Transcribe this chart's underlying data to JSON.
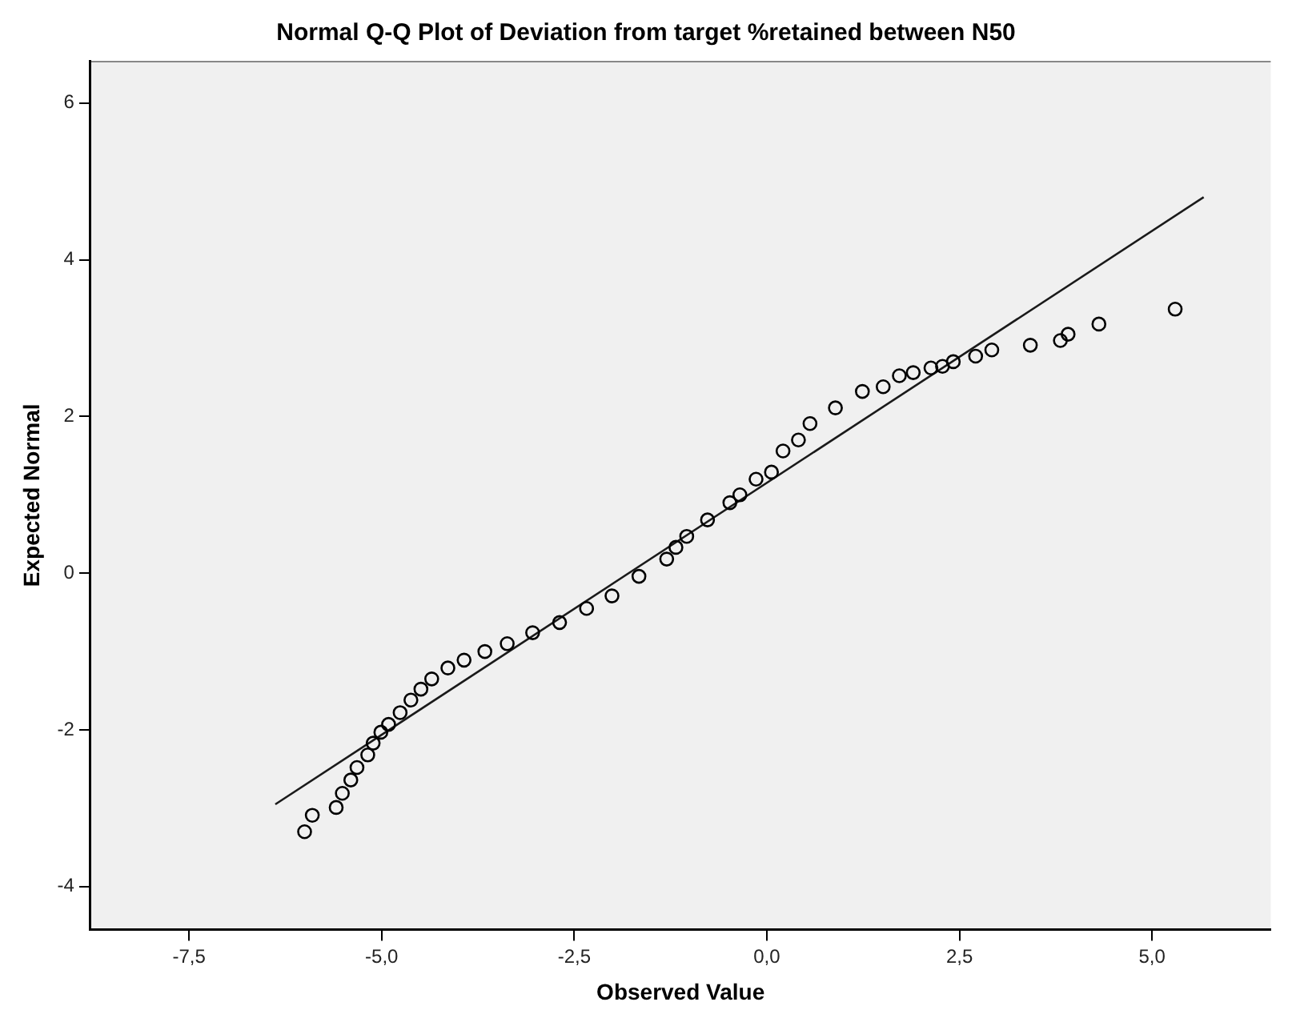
{
  "chart_data": {
    "type": "scatter",
    "title": "Normal Q-Q Plot of Deviation from target %retained between N50",
    "xlabel": "Observed Value",
    "ylabel": "Expected Normal",
    "xlim": [
      -8.78,
      6.54
    ],
    "ylim": [
      -4.55,
      6.54
    ],
    "xticks": [
      {
        "value": -7.5,
        "label": "-7,5"
      },
      {
        "value": -5,
        "label": "-5,0"
      },
      {
        "value": -2.5,
        "label": "-2,5"
      },
      {
        "value": 0,
        "label": "0,0"
      },
      {
        "value": 2.5,
        "label": "2,5"
      },
      {
        "value": 5,
        "label": "5,0"
      }
    ],
    "yticks": [
      -4,
      -2,
      0,
      2,
      4,
      6
    ],
    "grid": false,
    "legend": false,
    "series": [
      {
        "marker": "circle",
        "color": "#000000",
        "x": [
          -6.0,
          -5.9,
          -5.59,
          -5.51,
          -5.4,
          -5.32,
          -5.18,
          -5.11,
          -5.01,
          -4.91,
          -4.76,
          -4.62,
          -4.49,
          -4.35,
          -4.14,
          -3.93,
          -3.66,
          -3.37,
          -3.04,
          -2.69,
          -2.34,
          -2.01,
          -1.66,
          -1.3,
          -1.18,
          -1.04,
          -0.77,
          -0.48,
          -0.35,
          -0.14,
          0.06,
          0.21,
          0.41,
          0.56,
          0.89,
          1.24,
          1.51,
          1.72,
          1.9,
          2.13,
          2.28,
          2.42,
          2.71,
          2.92,
          3.42,
          3.81,
          3.91,
          4.31,
          5.3
        ],
        "values": [
          -3.3,
          -3.09,
          -2.99,
          -2.81,
          -2.64,
          -2.48,
          -2.32,
          -2.17,
          -2.03,
          -1.93,
          -1.78,
          -1.62,
          -1.48,
          -1.35,
          -1.21,
          -1.11,
          -1.0,
          -0.9,
          -0.76,
          -0.63,
          -0.45,
          -0.29,
          -0.04,
          0.18,
          0.33,
          0.47,
          0.68,
          0.9,
          1.0,
          1.2,
          1.29,
          1.56,
          1.7,
          1.91,
          2.11,
          2.32,
          2.38,
          2.52,
          2.56,
          2.62,
          2.64,
          2.7,
          2.77,
          2.85,
          2.91,
          2.97,
          3.05,
          3.18,
          3.37
        ]
      },
      {
        "type": "line",
        "marker": "none",
        "color": "#1a1a1a",
        "x": [
          -6.38,
          5.67
        ],
        "values": [
          -2.95,
          4.8
        ]
      }
    ]
  }
}
